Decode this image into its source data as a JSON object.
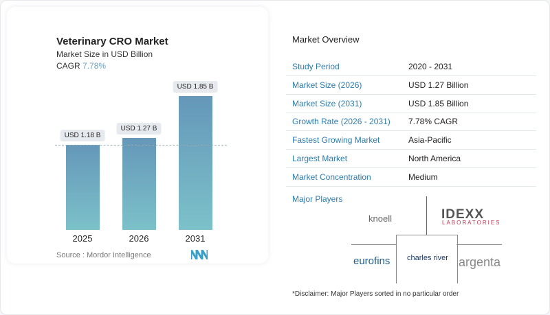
{
  "chart_data": {
    "type": "bar",
    "title": "Veterinary CRO Market",
    "subtitle": "Market Size in USD Billion",
    "cagr_label": "CAGR",
    "cagr_value": "7.78%",
    "categories": [
      "2025",
      "2026",
      "2031"
    ],
    "values": [
      1.18,
      1.27,
      1.85
    ],
    "data_labels": [
      "USD 1.18 B",
      "USD 1.27 B",
      "USD 1.85 B"
    ],
    "ylim": [
      0,
      1.85
    ],
    "colors": {
      "bar_top": "#6597b9",
      "bar_bottom": "#7cc1c9"
    },
    "reference_line": "dashed at 2025 value",
    "source": "Source :  Mordor Intelligence"
  },
  "overview": {
    "title": "Market Overview",
    "rows": [
      {
        "k": "Study Period",
        "v": "2020 - 2031"
      },
      {
        "k": "Market Size (2026)",
        "v": "USD 1.27 Billion"
      },
      {
        "k": "Market Size (2031)",
        "v": "USD 1.85 Billion"
      },
      {
        "k": "Growth Rate (2026 - 2031)",
        "v": "7.78% CAGR"
      },
      {
        "k": "Fastest Growing Market",
        "v": "Asia-Pacific"
      },
      {
        "k": "Largest Market",
        "v": "North America"
      },
      {
        "k": "Market Concentration",
        "v": "Medium"
      }
    ],
    "players_title": "Major Players",
    "players": [
      "knoell",
      "IDEXX",
      "LABORATORIES",
      "eurofins",
      "charles river",
      "argenta"
    ],
    "disclaimer": "*Disclaimer: Major Players sorted in no particular order"
  }
}
